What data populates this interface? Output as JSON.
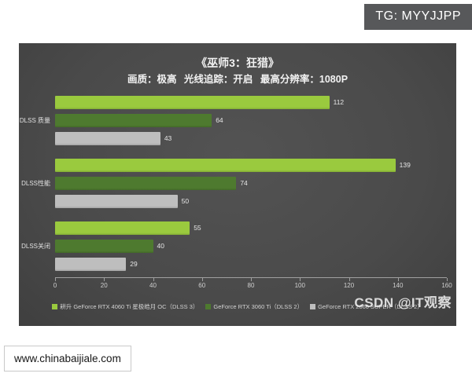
{
  "watermarks": {
    "tg_badge": "TG: MYYJJPP",
    "site_badge": "www.chinabaijiale.com",
    "csdn": "CSDN @IT观察"
  },
  "chart_data": {
    "type": "bar",
    "orientation": "horizontal",
    "title": "《巫师3：狂猎》",
    "subtitle": "画质：极高 光线追踪：开启 最高分辨率：1080P",
    "categories": [
      "DLSS 质量",
      "DLSS性能",
      "DLSS关闭"
    ],
    "series": [
      {
        "name": "耕升 GeForce RTX 4060 Ti 星极皓月 OC（DLSS 3）",
        "color": "#9aca3e",
        "values": [
          112,
          139,
          55
        ]
      },
      {
        "name": "GeForce RTX 3060 Ti（DLSS 2）",
        "color": "#4e7a2f",
        "values": [
          64,
          74,
          40
        ]
      },
      {
        "name": "GeForce RTX 2060 SUPER（DLSS 2）",
        "color": "#bebebe",
        "values": [
          43,
          50,
          29
        ]
      }
    ],
    "xlim": [
      0,
      160
    ],
    "xticks": [
      0,
      20,
      40,
      60,
      80,
      100,
      120,
      140,
      160
    ],
    "grid": false,
    "legend_position": "bottom",
    "value_labels": true
  },
  "colors": {
    "panel_bg": "#4b4b4b",
    "badge_bg": "#57585a",
    "axis": "#a0a0a0"
  }
}
